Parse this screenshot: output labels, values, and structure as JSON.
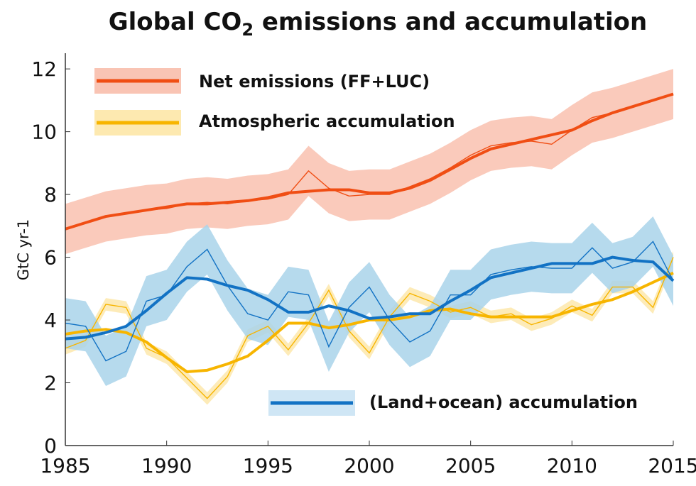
{
  "chart_data": {
    "type": "line",
    "title": "Global CO2 emissions and accumulation",
    "title_main": "Global CO",
    "title_sub": "2",
    "title_rest": " emissions and accumulation",
    "ylabel": "GtC yr-1",
    "ylabel_main": "GtC yr",
    "ylabel_sup": "-1",
    "xlim": [
      1985,
      2015
    ],
    "ylim": [
      0,
      12.5
    ],
    "xticks": [
      1985,
      1990,
      1995,
      2000,
      2005,
      2010,
      2015
    ],
    "yticks": [
      0,
      2,
      4,
      6,
      8,
      10,
      12
    ],
    "grid": false,
    "legend_placement": "top-left and bottom-right",
    "x": [
      1985,
      1986,
      1987,
      1988,
      1989,
      1990,
      1991,
      1992,
      1993,
      1994,
      1995,
      1996,
      1997,
      1998,
      1999,
      2000,
      2001,
      2002,
      2003,
      2004,
      2005,
      2006,
      2007,
      2008,
      2009,
      2010,
      2011,
      2012,
      2013,
      2014,
      2015
    ],
    "series": [
      {
        "name": "Net emissions (FF+LUC)",
        "color": "#f04e14",
        "band_color": "#f9c4b4",
        "band_halfwidth": 0.8,
        "smoothed": [
          6.9,
          7.1,
          7.3,
          7.4,
          7.5,
          7.6,
          7.7,
          7.7,
          7.75,
          7.8,
          7.9,
          8.05,
          8.1,
          8.15,
          8.15,
          8.05,
          8.05,
          8.2,
          8.45,
          8.8,
          9.15,
          9.45,
          9.6,
          9.75,
          9.9,
          10.05,
          10.35,
          10.6,
          10.8,
          11.0,
          11.2
        ],
        "annual": [
          6.9,
          7.1,
          7.3,
          7.4,
          7.5,
          7.55,
          7.7,
          7.75,
          7.7,
          7.8,
          7.85,
          8.0,
          8.75,
          8.2,
          7.95,
          8.0,
          8.0,
          8.25,
          8.5,
          8.85,
          9.25,
          9.55,
          9.65,
          9.7,
          9.6,
          10.05,
          10.45,
          10.6,
          10.8,
          11.0,
          11.2
        ]
      },
      {
        "name": "Atmospheric accumulation",
        "color": "#f7b500",
        "band_color": "#fde9b0",
        "band_halfwidth": 0.2,
        "smoothed": [
          3.55,
          3.65,
          3.7,
          3.6,
          3.3,
          2.8,
          2.35,
          2.4,
          2.6,
          2.85,
          3.35,
          3.9,
          3.9,
          3.75,
          3.85,
          4.0,
          4.0,
          4.1,
          4.3,
          4.35,
          4.2,
          4.1,
          4.1,
          4.1,
          4.1,
          4.3,
          4.5,
          4.65,
          4.9,
          5.2,
          5.5
        ],
        "annual": [
          3.1,
          3.35,
          4.5,
          4.4,
          3.1,
          2.8,
          2.15,
          1.5,
          2.2,
          3.5,
          3.8,
          3.05,
          3.9,
          4.95,
          3.65,
          2.95,
          4.1,
          4.85,
          4.6,
          4.25,
          4.4,
          4.1,
          4.2,
          3.85,
          4.05,
          4.45,
          4.15,
          5.05,
          5.05,
          4.4,
          6.0
        ]
      },
      {
        "name": "(Land+ocean) accumulation",
        "color": "#1272c4",
        "band_color": "#a9d4ea",
        "band_halfwidth": 0.8,
        "smoothed": [
          3.4,
          3.45,
          3.6,
          3.8,
          4.3,
          4.85,
          5.35,
          5.3,
          5.1,
          4.95,
          4.65,
          4.25,
          4.25,
          4.45,
          4.3,
          4.05,
          4.1,
          4.2,
          4.2,
          4.6,
          4.95,
          5.35,
          5.5,
          5.65,
          5.8,
          5.8,
          5.8,
          6.0,
          5.9,
          5.85,
          5.25
        ],
        "annual": [
          3.9,
          3.8,
          2.7,
          3.0,
          4.6,
          4.8,
          5.7,
          6.25,
          5.1,
          4.2,
          4.0,
          4.9,
          4.8,
          3.15,
          4.4,
          5.05,
          4.0,
          3.3,
          3.65,
          4.8,
          4.8,
          5.45,
          5.6,
          5.7,
          5.65,
          5.65,
          6.3,
          5.65,
          5.85,
          6.5,
          5.25
        ]
      }
    ]
  }
}
